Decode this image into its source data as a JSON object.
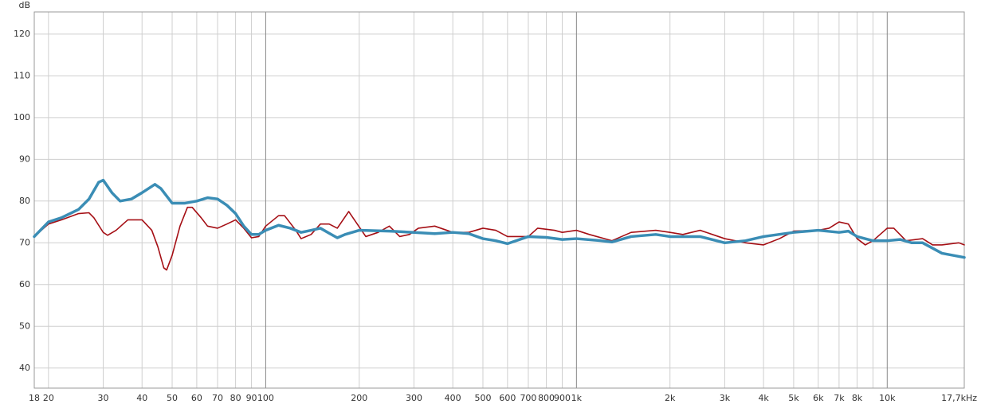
{
  "chart_data": {
    "type": "line",
    "y_label": "dB",
    "xscale": "log",
    "grid": true,
    "xlim": [
      18,
      17700
    ],
    "ylim": [
      35.2,
      125.3
    ],
    "yticks": [
      40,
      50,
      60,
      70,
      80,
      90,
      100,
      110,
      120
    ],
    "xticks": [
      18,
      20,
      30,
      40,
      50,
      60,
      70,
      80,
      90,
      100,
      200,
      300,
      400,
      500,
      600,
      700,
      800,
      900,
      {
        "value": 1000,
        "label": "1k"
      },
      {
        "value": 2000,
        "label": "2k"
      },
      {
        "value": 3000,
        "label": "3k"
      },
      {
        "value": 4000,
        "label": "4k"
      },
      {
        "value": 5000,
        "label": "5k"
      },
      {
        "value": 6000,
        "label": "6k"
      },
      {
        "value": 7000,
        "label": "7k"
      },
      {
        "value": 8000,
        "label": "8k"
      },
      {
        "value": 9000,
        "label": null
      },
      {
        "value": 10000,
        "label": "10k"
      },
      {
        "value": 17700,
        "label": "17,7kHz"
      }
    ],
    "series": [
      {
        "color": "#a50f15",
        "width": 1.6,
        "x": [
          18,
          20,
          22,
          25,
          27,
          28,
          30,
          31,
          33,
          36,
          40,
          43,
          45,
          47,
          48,
          50,
          53,
          56,
          58,
          62,
          65,
          70,
          75,
          80,
          85,
          90,
          95,
          100,
          110,
          115,
          125,
          130,
          140,
          150,
          160,
          170,
          185,
          195,
          210,
          230,
          250,
          270,
          290,
          310,
          350,
          400,
          450,
          500,
          550,
          600,
          700,
          750,
          850,
          900,
          1000,
          1100,
          1300,
          1500,
          1800,
          2000,
          2200,
          2500,
          3000,
          3500,
          4000,
          4500,
          5000,
          6000,
          6500,
          7000,
          7500,
          8000,
          8500,
          9000,
          10000,
          10500,
          11500,
          13000,
          14000,
          15000,
          17000,
          17700
        ],
        "values": [
          71.5,
          74.5,
          75.5,
          77,
          77.2,
          76,
          72.5,
          71.8,
          73,
          75.5,
          75.5,
          73,
          69,
          64,
          63.5,
          67,
          74,
          78.5,
          78.5,
          76,
          74,
          73.5,
          74.5,
          75.5,
          73.5,
          71.2,
          71.5,
          74,
          76.5,
          76.5,
          73,
          71,
          72,
          74.5,
          74.5,
          73.5,
          77.5,
          75,
          71.5,
          72.5,
          74,
          71.5,
          72,
          73.5,
          74,
          72.5,
          72.5,
          73.5,
          73,
          71.5,
          71.5,
          73.5,
          73,
          72.5,
          73,
          72,
          70.5,
          72.5,
          73,
          72.5,
          72,
          73,
          71,
          70,
          69.5,
          71,
          72.8,
          73,
          73.5,
          75,
          74.5,
          71,
          69.5,
          70.5,
          73.5,
          73.5,
          70.5,
          71,
          69.5,
          69.5,
          70,
          69.5
        ]
      },
      {
        "color": "#3a8db5",
        "width": 3.5,
        "x": [
          18,
          20,
          22,
          25,
          27,
          29,
          30,
          32,
          34,
          37,
          40,
          44,
          46,
          50,
          55,
          60,
          65,
          70,
          75,
          80,
          85,
          90,
          95,
          100,
          110,
          120,
          130,
          140,
          150,
          160,
          170,
          180,
          200,
          250,
          300,
          350,
          400,
          450,
          500,
          550,
          600,
          700,
          800,
          900,
          1000,
          1200,
          1300,
          1500,
          1800,
          2000,
          2500,
          3000,
          3500,
          4000,
          5000,
          6000,
          7000,
          7500,
          8000,
          9000,
          10000,
          11000,
          12000,
          13000,
          15000,
          17700
        ],
        "values": [
          71.5,
          75,
          76,
          78,
          80.5,
          84.5,
          85,
          82,
          80,
          80.5,
          82,
          84,
          83,
          79.5,
          79.5,
          80,
          80.8,
          80.5,
          79,
          77,
          74,
          72,
          72,
          73,
          74.2,
          73.5,
          72.5,
          73,
          73.5,
          72.3,
          71.2,
          72,
          73,
          72.8,
          72.5,
          72.2,
          72.5,
          72.2,
          71,
          70.5,
          69.8,
          71.5,
          71.3,
          70.8,
          71,
          70.5,
          70.2,
          71.5,
          72,
          71.5,
          71.5,
          70,
          70.5,
          71.5,
          72.5,
          73,
          72.5,
          72.8,
          71.5,
          70.5,
          70.5,
          70.8,
          70,
          70,
          67.5,
          66.5
        ]
      }
    ]
  }
}
